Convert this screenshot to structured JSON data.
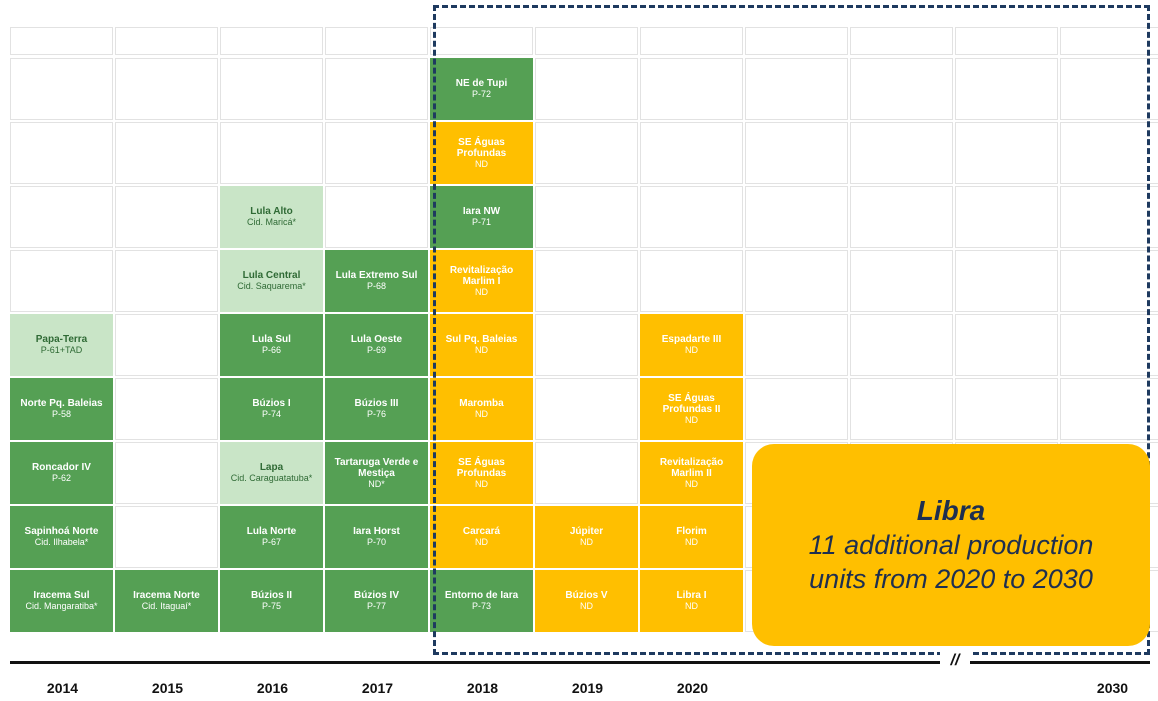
{
  "columns": [
    {
      "year": "2014",
      "units": [
        {
          "name": "Papa-Terra",
          "sub": "P-61+TAD",
          "color": "light"
        },
        {
          "name": "Norte Pq. Baleias",
          "sub": "P-58",
          "color": "green"
        },
        {
          "name": "Roncador IV",
          "sub": "P-62",
          "color": "green"
        },
        {
          "name": "Sapinhoá Norte",
          "sub": "Cid. Ilhabela*",
          "color": "green"
        },
        {
          "name": "Iracema Sul",
          "sub": "Cid. Mangaratiba*",
          "color": "green"
        }
      ]
    },
    {
      "year": "2015",
      "units": [
        {
          "name": "Iracema Norte",
          "sub": "Cid. Itaguaí*",
          "color": "green"
        }
      ]
    },
    {
      "year": "2016",
      "units": [
        {
          "name": "Lula Alto",
          "sub": "Cid. Maricá*",
          "color": "light"
        },
        {
          "name": "Lula Central",
          "sub": "Cid. Saquarema*",
          "color": "light"
        },
        {
          "name": "Lula Sul",
          "sub": "P-66",
          "color": "green"
        },
        {
          "name": "Búzios I",
          "sub": "P-74",
          "color": "green"
        },
        {
          "name": "Lapa",
          "sub": "Cid. Caraguatatuba*",
          "color": "light"
        },
        {
          "name": "Lula Norte",
          "sub": "P-67",
          "color": "green"
        },
        {
          "name": "Búzios II",
          "sub": "P-75",
          "color": "green"
        }
      ]
    },
    {
      "year": "2017",
      "units": [
        {
          "name": "Lula Extremo Sul",
          "sub": "P-68",
          "color": "green"
        },
        {
          "name": "Lula Oeste",
          "sub": "P-69",
          "color": "green"
        },
        {
          "name": "Búzios III",
          "sub": "P-76",
          "color": "green"
        },
        {
          "name": "Tartaruga Verde e Mestiça",
          "sub": "ND*",
          "color": "green"
        },
        {
          "name": "Iara Horst",
          "sub": "P-70",
          "color": "green"
        },
        {
          "name": "Búzios IV",
          "sub": "P-77",
          "color": "green"
        }
      ]
    },
    {
      "year": "2018",
      "units": [
        {
          "name": "NE de Tupi",
          "sub": "P-72",
          "color": "green"
        },
        {
          "name": "SE Águas Profundas",
          "sub": "ND",
          "color": "orange"
        },
        {
          "name": "Iara NW",
          "sub": "P-71",
          "color": "green"
        },
        {
          "name": "Revitalização Marlim I",
          "sub": "ND",
          "color": "orange"
        },
        {
          "name": "Sul Pq. Baleias",
          "sub": "ND",
          "color": "orange"
        },
        {
          "name": "Maromba",
          "sub": "ND",
          "color": "orange"
        },
        {
          "name": "SE Águas Profundas",
          "sub": "ND",
          "color": "orange"
        },
        {
          "name": "Carcará",
          "sub": "ND",
          "color": "orange"
        },
        {
          "name": "Entorno de Iara",
          "sub": "P-73",
          "color": "green"
        }
      ]
    },
    {
      "year": "2019",
      "units": [
        {
          "name": "Júpiter",
          "sub": "ND",
          "color": "orange"
        },
        {
          "name": "Búzios V",
          "sub": "ND",
          "color": "orange"
        }
      ]
    },
    {
      "year": "2020",
      "units": [
        {
          "name": "Espadarte III",
          "sub": "ND",
          "color": "orange"
        },
        {
          "name": "SE Águas Profundas II",
          "sub": "ND",
          "color": "orange"
        },
        {
          "name": "Revitalização Marlim II",
          "sub": "ND",
          "color": "orange"
        },
        {
          "name": "Florim",
          "sub": "ND",
          "color": "orange"
        },
        {
          "name": "Libra I",
          "sub": "ND",
          "color": "orange"
        }
      ]
    }
  ],
  "last_year": "2030",
  "libra": {
    "title": "Libra",
    "description": "11 additional production units from 2020 to 2030"
  },
  "break_mark": "//"
}
